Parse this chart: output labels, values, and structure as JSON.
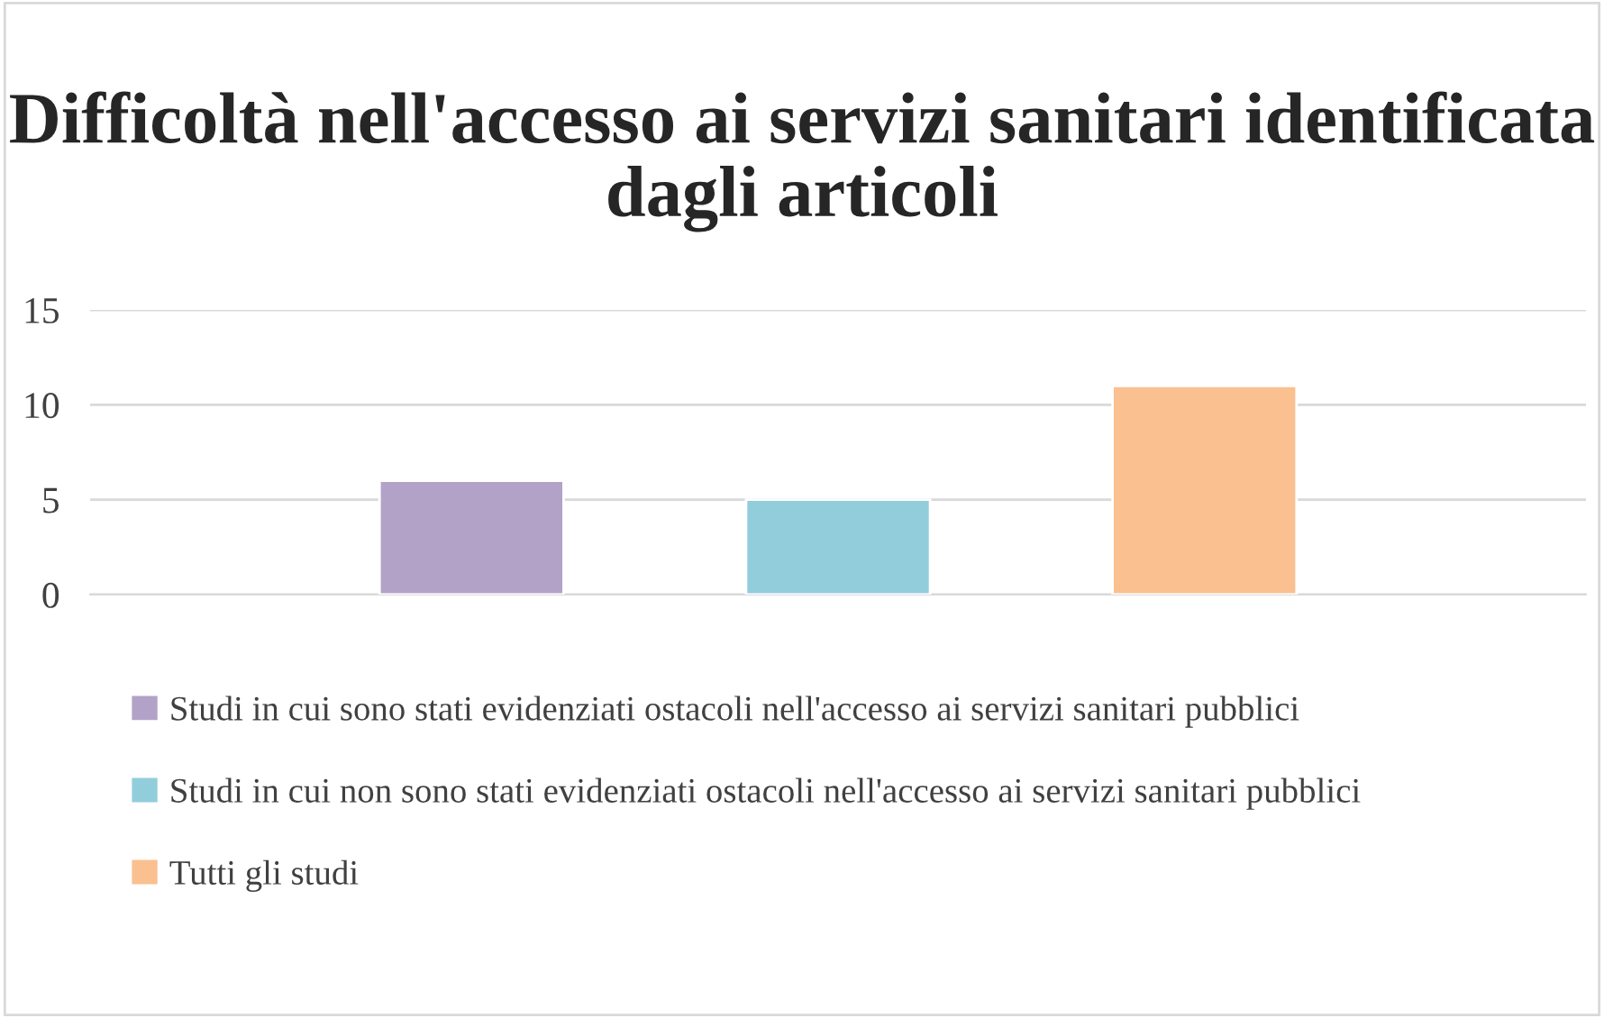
{
  "chart_data": {
    "type": "bar",
    "title": "Difficoltà nell'accesso ai servizi sanitari identificata dagli articoli",
    "categories": [
      null
    ],
    "series": [
      {
        "name": "Studi in cui sono stati evidenziati ostacoli nell'accesso ai servizi sanitari pubblici",
        "color": "#b3a2c7",
        "values": [
          6
        ]
      },
      {
        "name": "Studi in cui non sono stati evidenziati ostacoli nell'accesso ai servizi sanitari pubblici",
        "color": "#92cddc",
        "values": [
          5
        ]
      },
      {
        "name": "Tutti gli studi",
        "color": "#fac090",
        "values": [
          11
        ]
      }
    ],
    "ylim": [
      0,
      15
    ],
    "yticks": [
      0,
      5,
      10,
      15
    ],
    "grid": "y",
    "legend": "bottom",
    "tick_labels": "y"
  }
}
